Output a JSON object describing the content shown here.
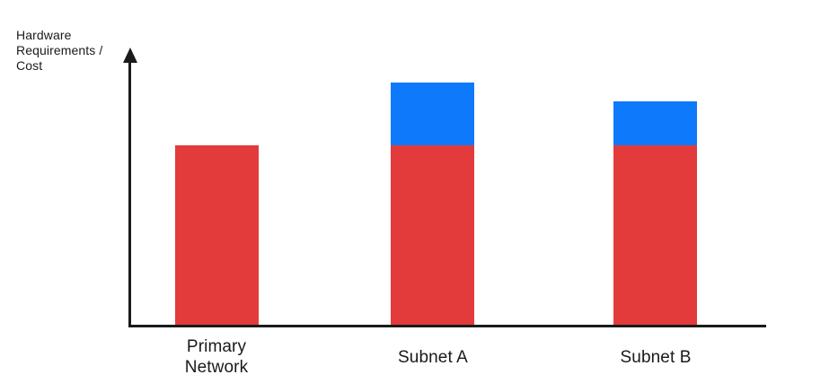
{
  "page": {
    "background": "#ffffff",
    "text_color": "#1a1a1a"
  },
  "chart_data": {
    "type": "bar",
    "stacked": true,
    "title": "",
    "y_axis_label": "Hardware Requirements / Cost",
    "xlabel": "",
    "categories": [
      "Primary Network",
      "Subnet A",
      "Subnet B"
    ],
    "series": [
      {
        "id": "red-base",
        "name": "Base hardware requirement (red segment)",
        "color": "#E33B3B",
        "values": [
          66,
          66,
          66
        ]
      },
      {
        "id": "blue-overhead",
        "name": "Additional subnet requirement (blue segment)",
        "color": "#0E7AFB",
        "values": [
          0,
          23,
          16
        ]
      }
    ],
    "value_units": "relative units 0-100, estimated from bar heights; chart shows no numeric ticks",
    "ylim": [
      0,
      100
    ],
    "grid": false,
    "legend_position": "none",
    "axis_color": "#1a1a1a",
    "y_axis_has_arrow": true
  }
}
